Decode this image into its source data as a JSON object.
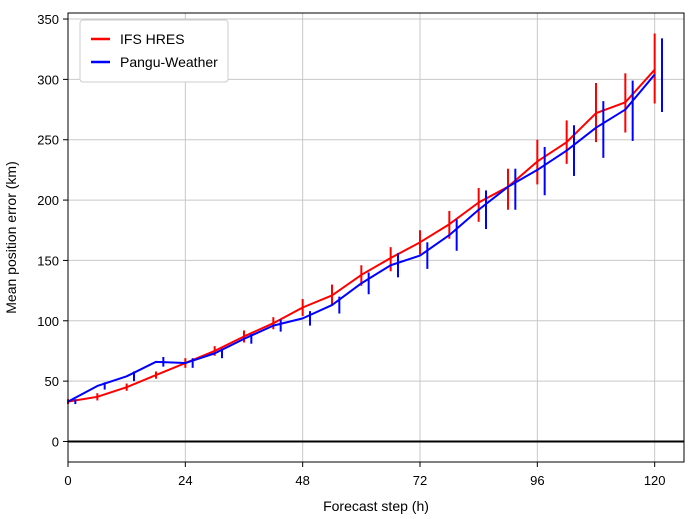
{
  "chart_data": {
    "type": "line",
    "title": "",
    "xlabel": "Forecast step (h)",
    "ylabel": "Mean position error (km)",
    "xlim": [
      0,
      126
    ],
    "ylim": [
      -17,
      355
    ],
    "xticks": [
      0,
      24,
      48,
      72,
      96,
      120
    ],
    "yticks": [
      0,
      50,
      100,
      150,
      200,
      250,
      300,
      350
    ],
    "grid": true,
    "zero_line": true,
    "legend_position": "top-left",
    "series": [
      {
        "name": "IFS HRES",
        "color": "#ff0000",
        "x": [
          0,
          6,
          12,
          18,
          24,
          30,
          36,
          42,
          48,
          54,
          60,
          66,
          72,
          78,
          84,
          90,
          96,
          102,
          108,
          114,
          120
        ],
        "y": [
          33,
          37,
          45,
          55,
          65,
          75,
          87,
          98,
          111,
          121,
          138,
          152,
          165,
          180,
          198,
          211,
          232,
          248,
          272,
          281,
          308
        ],
        "err_low": [
          31,
          34,
          42,
          52,
          61,
          71,
          82,
          93,
          104,
          113,
          129,
          141,
          155,
          168,
          182,
          192,
          213,
          230,
          248,
          256,
          280
        ],
        "err_high": [
          35,
          40,
          48,
          58,
          69,
          79,
          92,
          103,
          118,
          130,
          146,
          161,
          175,
          191,
          210,
          226,
          250,
          266,
          297,
          305,
          338
        ]
      },
      {
        "name": "Pangu-Weather",
        "color": "#0000ff",
        "x": [
          0,
          6,
          12,
          18,
          24,
          30,
          36,
          42,
          48,
          54,
          60,
          66,
          72,
          78,
          84,
          90,
          96,
          102,
          108,
          114,
          120
        ],
        "y": [
          33,
          46,
          54,
          66,
          65,
          73,
          85,
          96,
          102,
          113,
          131,
          146,
          154,
          171,
          192,
          211,
          225,
          241,
          260,
          275,
          304
        ],
        "err_low": [
          31,
          43,
          50,
          62,
          61,
          69,
          81,
          91,
          96,
          106,
          122,
          136,
          143,
          158,
          176,
          192,
          204,
          220,
          235,
          249,
          273
        ],
        "err_high": [
          35,
          49,
          58,
          70,
          69,
          77,
          89,
          101,
          108,
          120,
          140,
          156,
          165,
          184,
          208,
          226,
          244,
          262,
          282,
          299,
          334
        ]
      }
    ]
  }
}
